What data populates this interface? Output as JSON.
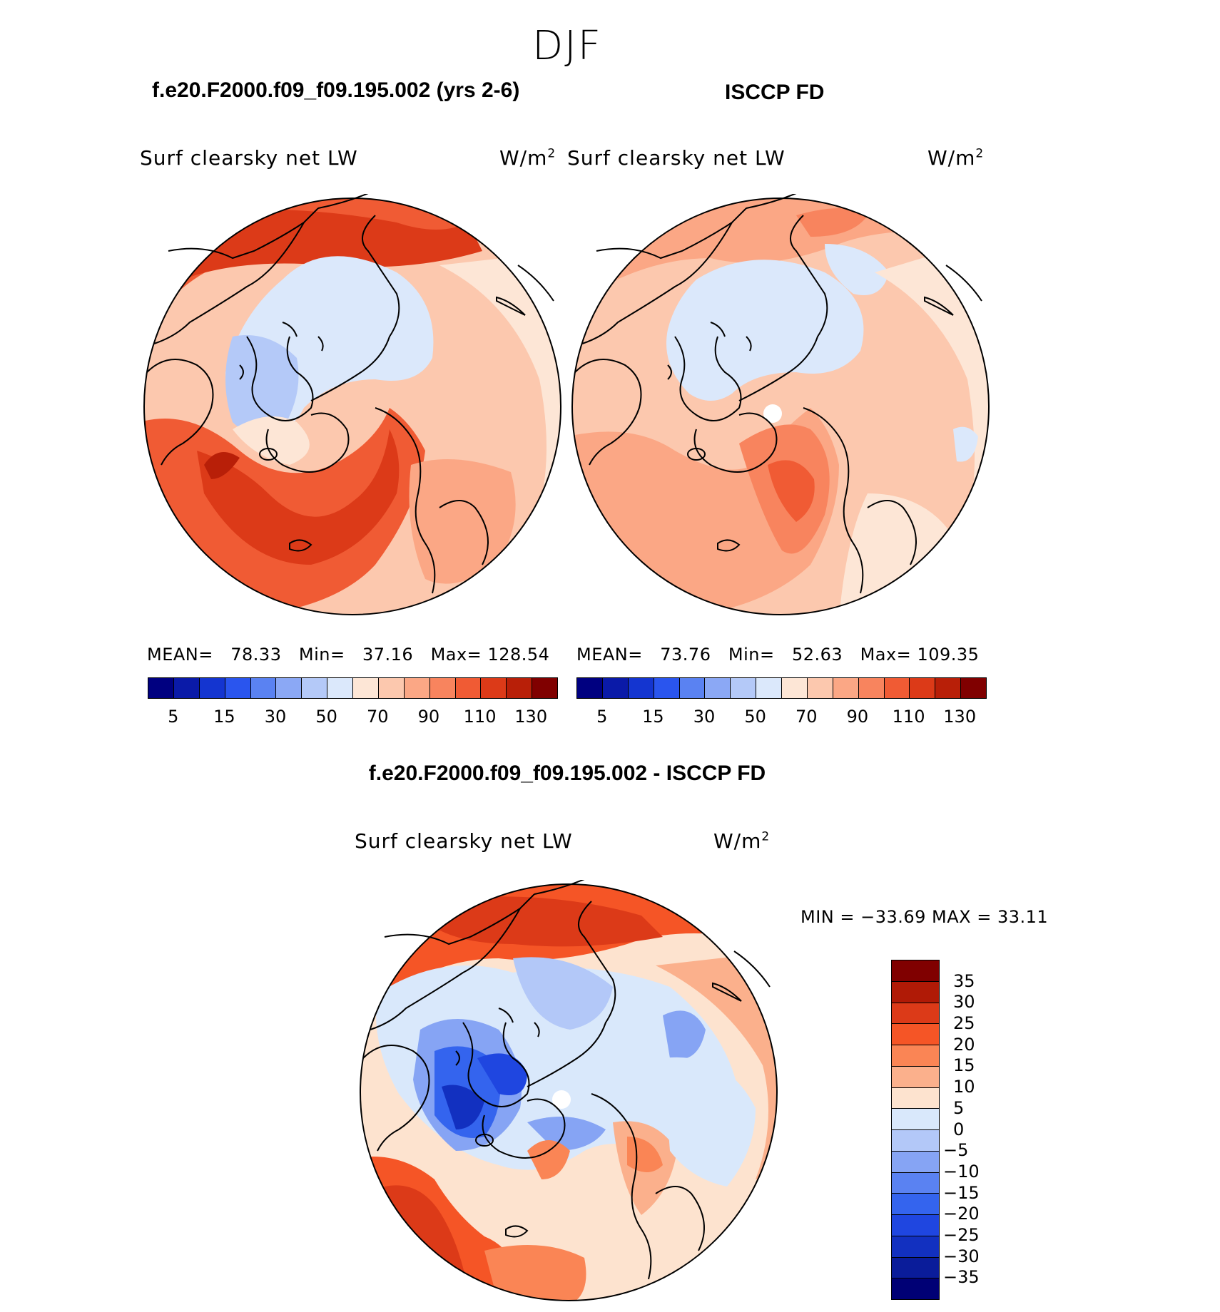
{
  "figure": {
    "season": "DJF",
    "left_title": "f.e20.F2000.f09_f09.195.002 (yrs 2-6)",
    "right_title": "ISCCP FD",
    "diff_title": "f.e20.F2000.f09_f09.195.002 - ISCCP FD"
  },
  "panels": [
    {
      "variable": "Surf clearsky net LW",
      "units": "W/m",
      "units_sup": "2",
      "mean_label": "MEAN=",
      "mean": "78.33",
      "min_label": "Min=",
      "min": "37.16",
      "max_label": "Max=",
      "max": "128.54"
    },
    {
      "variable": "Surf clearsky net LW",
      "units": "W/m",
      "units_sup": "2",
      "mean_label": "MEAN=",
      "mean": "73.76",
      "min_label": "Min=",
      "min": "52.63",
      "max_label": "Max=",
      "max": "109.35"
    }
  ],
  "diff_panel": {
    "variable": "Surf clearsky net LW",
    "units": "W/m",
    "units_sup": "2",
    "minmax_text": "MIN = −33.69 MAX =   33.11"
  },
  "colorbars": {
    "abs_colors": [
      "#000080",
      "#0a1aa8",
      "#1435d0",
      "#2a55ee",
      "#5a82f2",
      "#8ba8f5",
      "#b4c9f8",
      "#dbe8fb",
      "#fde6d6",
      "#fcc8ae",
      "#fba785",
      "#f8845e",
      "#f05b34",
      "#dc3a18",
      "#b81f08",
      "#800000"
    ],
    "abs_ticks": [
      "5",
      "15",
      "30",
      "50",
      "70",
      "90",
      "110",
      "130"
    ],
    "diff_colors": [
      "#800000",
      "#b01a06",
      "#dc3a18",
      "#f55526",
      "#fa8555",
      "#fbb08c",
      "#fde3cf",
      "#d9e8fb",
      "#b3c8f8",
      "#86a4f4",
      "#5a82f2",
      "#3464ee",
      "#1f46e0",
      "#1230c0",
      "#0a1c9a",
      "#000075"
    ],
    "diff_ticks": [
      "35",
      "30",
      "25",
      "20",
      "15",
      "10",
      "5",
      "0",
      "−5",
      "−10",
      "−15",
      "−20",
      "−25",
      "−30",
      "−35"
    ]
  },
  "chart_data": [
    {
      "type": "heatmap",
      "title": "Surf clearsky net LW",
      "subtitle": "f.e20.F2000.f09_f09.195.002 (yrs 2-6)",
      "units": "W/m2",
      "projection": "north polar stereographic",
      "levels": [
        5,
        10,
        15,
        20,
        30,
        40,
        50,
        60,
        70,
        80,
        90,
        100,
        110,
        120,
        130
      ],
      "stats": {
        "mean": 78.33,
        "min": 37.16,
        "max": 128.54
      }
    },
    {
      "type": "heatmap",
      "title": "Surf clearsky net LW",
      "subtitle": "ISCCP FD",
      "units": "W/m2",
      "projection": "north polar stereographic",
      "levels": [
        5,
        10,
        15,
        20,
        30,
        40,
        50,
        60,
        70,
        80,
        90,
        100,
        110,
        120,
        130
      ],
      "stats": {
        "mean": 73.76,
        "min": 52.63,
        "max": 109.35
      }
    },
    {
      "type": "heatmap",
      "title": "Surf clearsky net LW",
      "subtitle": "f.e20.F2000.f09_f09.195.002 - ISCCP FD",
      "units": "W/m2",
      "projection": "north polar stereographic",
      "levels": [
        -35,
        -30,
        -25,
        -20,
        -15,
        -10,
        -5,
        0,
        5,
        10,
        15,
        20,
        25,
        30,
        35
      ],
      "stats": {
        "min": -33.69,
        "max": 33.11
      }
    }
  ]
}
